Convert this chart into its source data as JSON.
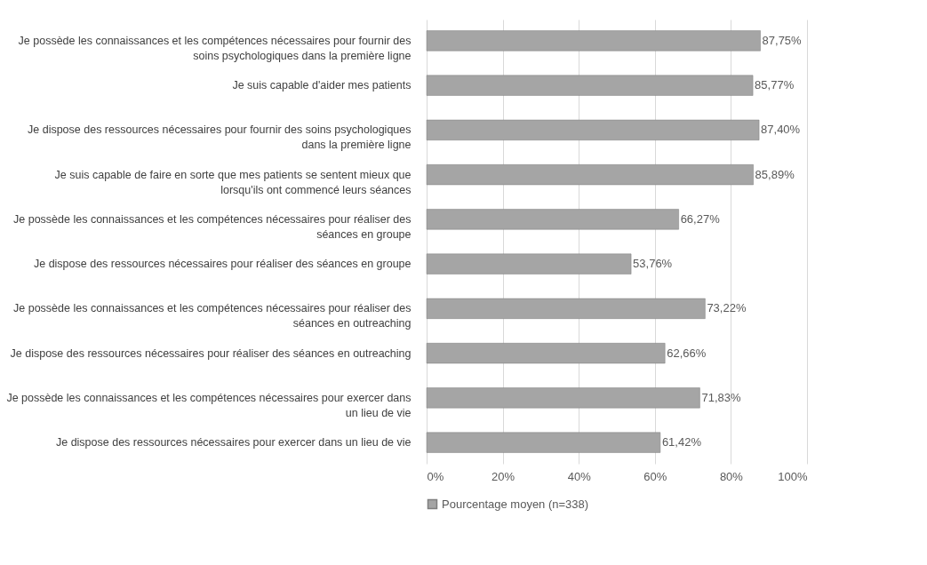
{
  "chart_data": {
    "type": "bar",
    "orientation": "horizontal",
    "categories": [
      "Je possède les connaissances et les compétences nécessaires pour fournir des soins psychologiques dans la première ligne",
      "Je suis capable d'aider mes patients",
      "Je dispose des ressources nécessaires pour fournir des soins psychologiques dans la première ligne",
      "Je suis capable de faire en sorte que mes patients se sentent mieux que lorsqu'ils ont commencé leurs séances",
      "Je possède les connaissances et les compétences nécessaires pour réaliser des séances en groupe",
      "Je dispose des ressources nécessaires pour réaliser des séances en groupe",
      "Je possède les connaissances et les compétences nécessaires pour réaliser des séances en outreaching",
      "Je dispose des ressources nécessaires pour réaliser des séances en outreaching",
      "Je possède les connaissances et les compétences nécessaires pour exercer dans un lieu de vie",
      "Je dispose des ressources nécessaires pour exercer dans un lieu de vie"
    ],
    "series": [
      {
        "name": "Pourcentage moyen (n=338)",
        "color": "#a5a5a5",
        "values": [
          87.75,
          85.77,
          87.4,
          85.89,
          66.27,
          53.76,
          73.22,
          62.66,
          71.83,
          61.42
        ],
        "value_labels": [
          "87,75%",
          "85,77%",
          "87,40%",
          "85,89%",
          "66,27%",
          "53,76%",
          "73,22%",
          "62,66%",
          "71,83%",
          "61,42%"
        ]
      }
    ],
    "xlim": [
      0,
      100
    ],
    "xticks": [
      {
        "value": 0,
        "label": "0%"
      },
      {
        "value": 20,
        "label": "20%"
      },
      {
        "value": 40,
        "label": "40%"
      },
      {
        "value": 60,
        "label": "60%"
      },
      {
        "value": 80,
        "label": "80%"
      },
      {
        "value": 100,
        "label": "100%"
      }
    ],
    "grid": "x",
    "legend": "bottom"
  }
}
